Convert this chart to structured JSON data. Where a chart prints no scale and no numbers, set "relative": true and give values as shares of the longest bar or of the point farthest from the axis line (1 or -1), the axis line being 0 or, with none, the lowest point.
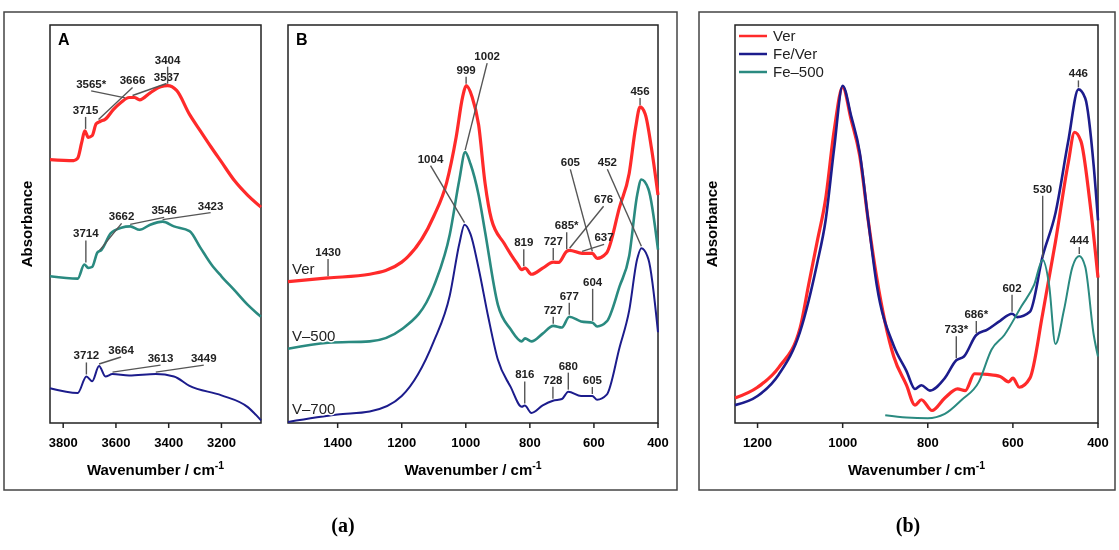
{
  "chart_data": [
    {
      "type": "line",
      "relative": true,
      "title": "A",
      "xlabel": "Wavenumber / cm$^{-1}$",
      "ylabel": "Absorbance",
      "xlim": [
        3850,
        3050
      ],
      "xticks": [
        3800,
        3600,
        3400,
        3200
      ],
      "series": [
        {
          "color": "#ff2a2a",
          "x": [
            3850,
            3760,
            3745,
            3730,
            3718,
            3705,
            3690,
            3675,
            3660,
            3640,
            3610,
            3580,
            3550,
            3530,
            3510,
            3470,
            3430,
            3404,
            3370,
            3321,
            3280,
            3240,
            3200,
            3150,
            3100,
            3050
          ],
          "values": [
            0.781,
            0.778,
            0.785,
            0.831,
            0.866,
            0.847,
            0.852,
            0.887,
            0.894,
            0.901,
            0.929,
            0.951,
            0.965,
            0.965,
            0.958,
            0.979,
            0.997,
            1.0,
            0.986,
            0.915,
            0.866,
            0.819,
            0.774,
            0.718,
            0.675,
            0.64
          ]
        },
        {
          "color": "#2a8a80",
          "x": [
            3850,
            3745,
            3720,
            3705,
            3690,
            3670,
            3655,
            3620,
            3580,
            3546,
            3510,
            3470,
            3423,
            3380,
            3321,
            3280,
            3238,
            3200,
            3150,
            3100,
            3050
          ],
          "values": [
            0.435,
            0.428,
            0.47,
            0.46,
            0.463,
            0.506,
            0.513,
            0.562,
            0.579,
            0.583,
            0.573,
            0.588,
            0.597,
            0.583,
            0.569,
            0.52,
            0.47,
            0.435,
            0.393,
            0.35,
            0.315
          ]
        },
        {
          "color": "#1c1c8c",
          "x": [
            3850,
            3745,
            3712,
            3690,
            3664,
            3640,
            3613,
            3550,
            3449,
            3380,
            3321,
            3200,
            3100,
            3050
          ],
          "values": [
            0.103,
            0.089,
            0.138,
            0.124,
            0.169,
            0.138,
            0.145,
            0.141,
            0.145,
            0.138,
            0.11,
            0.082,
            0.047,
            0.008
          ]
        }
      ],
      "annotations": [
        {
          "text": "3715",
          "x": 3715,
          "y": 0.866
        },
        {
          "text": "3666",
          "x": 3666,
          "y": 0.894
        },
        {
          "text": "3565*",
          "x": 3565,
          "y": 0.958
        },
        {
          "text": "3537",
          "x": 3537,
          "y": 0.965
        },
        {
          "text": "3404",
          "x": 3404,
          "y": 1.0
        },
        {
          "text": "3714",
          "x": 3714,
          "y": 0.47
        },
        {
          "text": "3662",
          "x": 3662,
          "y": 0.506
        },
        {
          "text": "3546",
          "x": 3546,
          "y": 0.583
        },
        {
          "text": "3423",
          "x": 3423,
          "y": 0.597
        },
        {
          "text": "3712",
          "x": 3712,
          "y": 0.138
        },
        {
          "text": "3664",
          "x": 3664,
          "y": 0.169
        },
        {
          "text": "3613",
          "x": 3613,
          "y": 0.145
        },
        {
          "text": "3449",
          "x": 3449,
          "y": 0.145
        }
      ]
    },
    {
      "type": "line",
      "relative": true,
      "title": "B",
      "xlabel": "Wavenumber / cm$^{-1}$",
      "xlim": [
        1555,
        400
      ],
      "xticks": [
        1400,
        1200,
        1000,
        800,
        600,
        400
      ],
      "series": [
        {
          "name": "Ver",
          "color": "#ff2a2a",
          "x": [
            1555,
            1430,
            1300,
            1200,
            1100,
            1060,
            1030,
            1010,
            999,
            980,
            960,
            940,
            920,
            880,
            840,
            825,
            815,
            795,
            760,
            727,
            710,
            685,
            676,
            637,
            605,
            590,
            560,
            520,
            490,
            470,
            456,
            440,
            420,
            400
          ],
          "values": [
            0.419,
            0.43,
            0.441,
            0.477,
            0.613,
            0.712,
            0.848,
            0.966,
            1.0,
            0.966,
            0.884,
            0.712,
            0.604,
            0.532,
            0.473,
            0.455,
            0.459,
            0.441,
            0.459,
            0.477,
            0.476,
            0.509,
            0.512,
            0.503,
            0.503,
            0.488,
            0.505,
            0.64,
            0.74,
            0.875,
            0.937,
            0.916,
            0.812,
            0.676
          ]
        },
        {
          "name": "V–500",
          "color": "#2a8a80",
          "x": [
            1555,
            1430,
            1300,
            1200,
            1100,
            1050,
            1020,
            1002,
            985,
            960,
            940,
            900,
            860,
            825,
            815,
            795,
            760,
            727,
            700,
            677,
            640,
            604,
            590,
            560,
            520,
            490,
            465,
            452,
            430,
            400
          ],
          "values": [
            0.22,
            0.238,
            0.242,
            0.278,
            0.405,
            0.559,
            0.722,
            0.803,
            0.767,
            0.676,
            0.568,
            0.351,
            0.278,
            0.242,
            0.251,
            0.242,
            0.265,
            0.288,
            0.283,
            0.315,
            0.301,
            0.297,
            0.286,
            0.301,
            0.405,
            0.495,
            0.676,
            0.722,
            0.694,
            0.514
          ]
        },
        {
          "name": "V–700",
          "color": "#1c1c8c",
          "x": [
            1555,
            1400,
            1300,
            1200,
            1100,
            1050,
            1020,
            1004,
            985,
            960,
            930,
            900,
            860,
            825,
            816,
            795,
            760,
            728,
            700,
            680,
            640,
            605,
            590,
            560,
            520,
            490,
            465,
            452,
            430,
            400
          ],
          "values": [
            0.003,
            0.025,
            0.034,
            0.08,
            0.242,
            0.378,
            0.532,
            0.588,
            0.559,
            0.459,
            0.315,
            0.188,
            0.107,
            0.048,
            0.052,
            0.03,
            0.052,
            0.066,
            0.071,
            0.093,
            0.08,
            0.08,
            0.069,
            0.084,
            0.224,
            0.333,
            0.486,
            0.518,
            0.486,
            0.269
          ]
        }
      ],
      "annotations": [
        {
          "text": "999",
          "x": 999,
          "y": 1.0
        },
        {
          "text": "456",
          "x": 456,
          "y": 0.937
        },
        {
          "text": "1430",
          "x": 1430,
          "y": 0.43
        },
        {
          "text": "819",
          "x": 819,
          "y": 0.459
        },
        {
          "text": "727",
          "x": 727,
          "y": 0.477
        },
        {
          "text": "685*",
          "x": 685,
          "y": 0.509
        },
        {
          "text": "676",
          "x": 676,
          "y": 0.512
        },
        {
          "text": "637",
          "x": 637,
          "y": 0.503
        },
        {
          "text": "605",
          "x": 605,
          "y": 0.503
        },
        {
          "text": "1002",
          "x": 1002,
          "y": 0.803
        },
        {
          "text": "727",
          "x": 727,
          "y": 0.288
        },
        {
          "text": "677",
          "x": 677,
          "y": 0.315
        },
        {
          "text": "604",
          "x": 604,
          "y": 0.297
        },
        {
          "text": "1004",
          "x": 1004,
          "y": 0.588
        },
        {
          "text": "452",
          "x": 452,
          "y": 0.518
        },
        {
          "text": "816",
          "x": 816,
          "y": 0.052
        },
        {
          "text": "728",
          "x": 728,
          "y": 0.066
        },
        {
          "text": "680",
          "x": 680,
          "y": 0.093
        },
        {
          "text": "605",
          "x": 605,
          "y": 0.08
        },
        "(a)"
      ]
    },
    {
      "type": "line",
      "relative": true,
      "xlabel": "Wavenumber / cm$^{-1}$",
      "ylabel": "Absorbance",
      "xlim": [
        1253,
        400
      ],
      "xticks": [
        1200,
        1000,
        800,
        600,
        400
      ],
      "legend": "top left",
      "series": [
        {
          "name": "Ver",
          "color": "#ff2a2a",
          "x": [
            1253,
            1200,
            1150,
            1100,
            1080,
            1060,
            1040,
            1020,
            1000,
            980,
            960,
            940,
            920,
            880,
            850,
            830,
            815,
            790,
            760,
            730,
            712,
            690,
            660,
            630,
            610,
            600,
            585,
            560,
            530,
            500,
            470,
            455,
            440,
            420,
            400
          ],
          "values": [
            0.074,
            0.106,
            0.165,
            0.282,
            0.41,
            0.537,
            0.665,
            0.867,
            0.995,
            0.899,
            0.793,
            0.601,
            0.431,
            0.197,
            0.112,
            0.053,
            0.069,
            0.037,
            0.074,
            0.101,
            0.096,
            0.146,
            0.144,
            0.138,
            0.122,
            0.133,
            0.106,
            0.133,
            0.324,
            0.537,
            0.771,
            0.862,
            0.835,
            0.665,
            0.431
          ]
        },
        {
          "name": "Fe/Ver",
          "color": "#1c1c8c",
          "x": [
            1253,
            1200,
            1150,
            1100,
            1060,
            1040,
            1020,
            1000,
            980,
            960,
            940,
            920,
            880,
            850,
            830,
            815,
            795,
            760,
            733,
            715,
            686,
            660,
            630,
            602,
            590,
            560,
            530,
            500,
            470,
            446,
            430,
            410,
            400
          ],
          "values": [
            0.053,
            0.08,
            0.144,
            0.271,
            0.473,
            0.601,
            0.814,
            1.0,
            0.91,
            0.803,
            0.601,
            0.41,
            0.229,
            0.154,
            0.101,
            0.112,
            0.096,
            0.133,
            0.186,
            0.197,
            0.261,
            0.277,
            0.303,
            0.324,
            0.314,
            0.33,
            0.495,
            0.622,
            0.835,
            0.989,
            0.963,
            0.761,
            0.601
          ]
        },
        {
          "name": "Fe–500",
          "color": "#2a8a80",
          "x": [
            900,
            850,
            800,
            760,
            720,
            680,
            650,
            620,
            580,
            550,
            530,
            515,
            500,
            480,
            460,
            444,
            430,
            410,
            400
          ],
          "values": [
            0.023,
            0.016,
            0.014,
            0.027,
            0.069,
            0.122,
            0.218,
            0.261,
            0.346,
            0.41,
            0.484,
            0.41,
            0.234,
            0.335,
            0.463,
            0.495,
            0.463,
            0.261,
            0.197
          ]
        }
      ],
      "annotations": [
        {
          "text": "446",
          "x": 446,
          "y": 0.989
        },
        {
          "text": "530",
          "x": 530,
          "y": 0.484
        },
        {
          "text": "444",
          "x": 444,
          "y": 0.495
        },
        {
          "text": "602",
          "x": 602,
          "y": 0.324
        },
        {
          "text": "686*",
          "x": 686,
          "y": 0.261
        },
        {
          "text": "733*",
          "x": 733,
          "y": 0.186
        },
        "(b)"
      ]
    }
  ]
}
